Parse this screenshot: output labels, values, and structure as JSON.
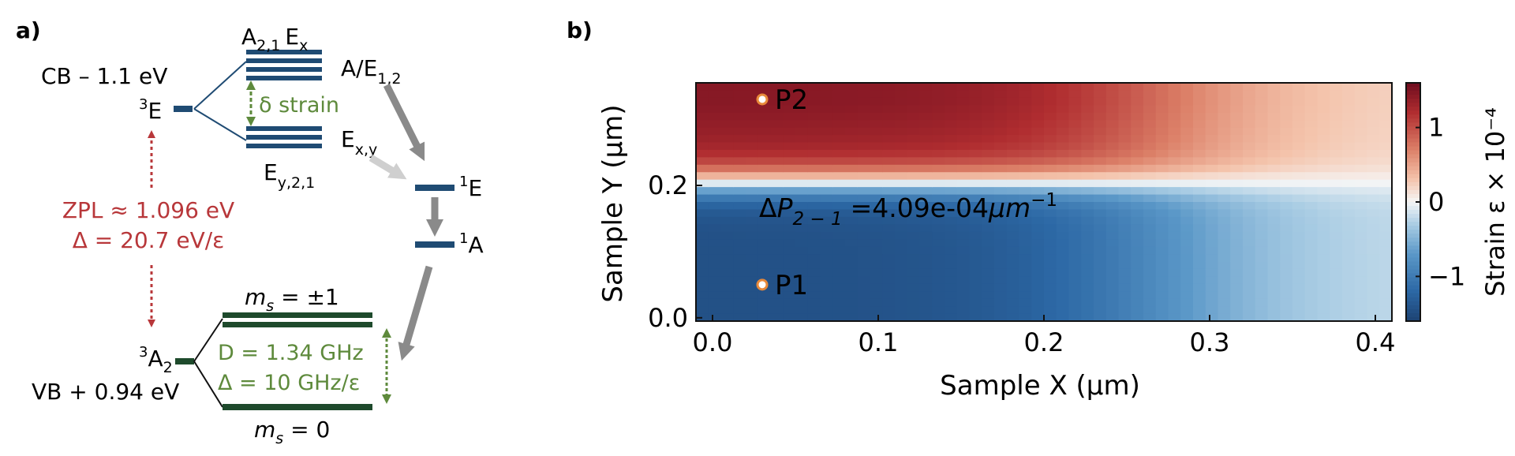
{
  "panel_a": {
    "label": "a)",
    "cb_text": "CB – 1.1 eV",
    "vb_text": "VB + 0.94 eV",
    "level_3E": {
      "sup": "3",
      "base": "E"
    },
    "level_3A2": {
      "sup": "3",
      "base": "A",
      "sub": "2"
    },
    "level_1E": {
      "sup": "1",
      "base": "E"
    },
    "level_1A": {
      "sup": "1",
      "base": "A"
    },
    "label_A21Ex": {
      "a": "A",
      "a_sub": "2,1",
      "e": "E",
      "e_sub": "x"
    },
    "label_AE12": {
      "base": "A/E",
      "sub": "1,2"
    },
    "label_Exy": {
      "base": "E",
      "sub": "x,y"
    },
    "label_Ey21": {
      "base": "E",
      "sub": "y,2,1"
    },
    "strain_text": "δ strain",
    "zpl_line1": "ZPL ≈ 1.096 eV",
    "zpl_line2": "Δ = 20.7 eV/ε",
    "ms_pm1": {
      "m": "m",
      "sub": "s",
      "rest": " = ±1"
    },
    "ms_0": {
      "m": "m",
      "sub": "s",
      "rest": " = 0"
    },
    "d_line1": "D = 1.34 GHz",
    "d_line2": "Δ = 10 GHz/ε",
    "colors": {
      "excited": "#1f4b73",
      "ground": "#1e4a2c",
      "red": "#b8373a",
      "green": "#5e8a3c",
      "arrow_dark": "#8a8a8a",
      "arrow_light": "#cfcfcf"
    }
  },
  "panel_b": {
    "label": "b)",
    "p1": "P1",
    "p2": "P2",
    "annotation": {
      "delta": "Δ",
      "P": "P",
      "sub": "2 − 1",
      "value": "=4.09e-04",
      "unit": "μm",
      "exp": "−1"
    }
  },
  "chart_data": {
    "type": "heatmap",
    "xlabel": "Sample X (μm)",
    "ylabel": "Sample Y (μm)",
    "colorbar_label": "Strain ε × 10⁻⁴",
    "xlim": [
      -0.01,
      0.41
    ],
    "ylim": [
      -0.005,
      0.355
    ],
    "x_ticks": [
      0.0,
      0.1,
      0.2,
      0.3,
      0.4
    ],
    "x_tick_labels": [
      "0.0",
      "0.1",
      "0.2",
      "0.3",
      "0.4"
    ],
    "y_ticks": [
      0.0,
      0.2
    ],
    "y_tick_labels": [
      "0.0",
      "0.2"
    ],
    "colorbar_ticks": [
      1,
      0,
      -1
    ],
    "colorbar_tick_labels": [
      "1",
      "0",
      "−1"
    ],
    "colorbar_range": [
      -1.6,
      1.6
    ],
    "colormap": "RdBu_r",
    "points": [
      {
        "name": "P1",
        "x": 0.03,
        "y": 0.05
      },
      {
        "name": "P2",
        "x": 0.03,
        "y": 0.33
      }
    ]
  }
}
